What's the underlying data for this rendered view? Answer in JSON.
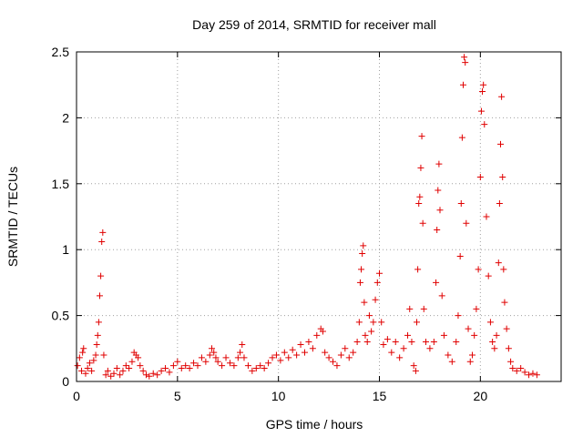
{
  "chart_data": {
    "type": "scatter",
    "title": "Day 259 of 2014, SRMTID for receiver mall",
    "xlabel": "GPS time / hours",
    "ylabel": "SRMTID / TECUs",
    "xlim": [
      0,
      24
    ],
    "ylim": [
      0,
      2.5
    ],
    "grid": true,
    "marker": "+",
    "series_color": "#e00000",
    "xticks": [
      {
        "value": 0,
        "label": "0"
      },
      {
        "value": 5,
        "label": "5"
      },
      {
        "value": 10,
        "label": "10"
      },
      {
        "value": 15,
        "label": "15"
      },
      {
        "value": 20,
        "label": "20"
      }
    ],
    "yticks": [
      {
        "value": 0,
        "label": "0"
      },
      {
        "value": 0.5,
        "label": "0.5"
      },
      {
        "value": 1,
        "label": "1"
      },
      {
        "value": 1.5,
        "label": "1.5"
      },
      {
        "value": 2,
        "label": "2"
      },
      {
        "value": 2.5,
        "label": "2.5"
      }
    ],
    "series": [
      {
        "name": "SRMTID",
        "points": [
          [
            0.05,
            0.12
          ],
          [
            0.15,
            0.18
          ],
          [
            0.25,
            0.08
          ],
          [
            0.3,
            0.22
          ],
          [
            0.35,
            0.25
          ],
          [
            0.45,
            0.06
          ],
          [
            0.55,
            0.1
          ],
          [
            0.65,
            0.14
          ],
          [
            0.75,
            0.08
          ],
          [
            0.85,
            0.16
          ],
          [
            0.95,
            0.2
          ],
          [
            1.0,
            0.28
          ],
          [
            1.05,
            0.35
          ],
          [
            1.1,
            0.45
          ],
          [
            1.15,
            0.65
          ],
          [
            1.2,
            0.8
          ],
          [
            1.25,
            1.06
          ],
          [
            1.3,
            1.13
          ],
          [
            1.35,
            0.2
          ],
          [
            1.45,
            0.05
          ],
          [
            1.55,
            0.08
          ],
          [
            1.7,
            0.04
          ],
          [
            1.85,
            0.06
          ],
          [
            2.0,
            0.1
          ],
          [
            2.15,
            0.05
          ],
          [
            2.3,
            0.08
          ],
          [
            2.45,
            0.12
          ],
          [
            2.6,
            0.1
          ],
          [
            2.75,
            0.15
          ],
          [
            2.85,
            0.22
          ],
          [
            2.95,
            0.2
          ],
          [
            3.05,
            0.18
          ],
          [
            3.15,
            0.12
          ],
          [
            3.3,
            0.08
          ],
          [
            3.45,
            0.05
          ],
          [
            3.6,
            0.04
          ],
          [
            3.8,
            0.06
          ],
          [
            4.0,
            0.05
          ],
          [
            4.2,
            0.08
          ],
          [
            4.4,
            0.1
          ],
          [
            4.6,
            0.07
          ],
          [
            4.8,
            0.12
          ],
          [
            5.0,
            0.15
          ],
          [
            5.2,
            0.1
          ],
          [
            5.4,
            0.12
          ],
          [
            5.6,
            0.1
          ],
          [
            5.8,
            0.14
          ],
          [
            6.0,
            0.12
          ],
          [
            6.2,
            0.18
          ],
          [
            6.4,
            0.15
          ],
          [
            6.6,
            0.2
          ],
          [
            6.7,
            0.25
          ],
          [
            6.8,
            0.22
          ],
          [
            6.9,
            0.18
          ],
          [
            7.0,
            0.15
          ],
          [
            7.2,
            0.12
          ],
          [
            7.4,
            0.18
          ],
          [
            7.6,
            0.14
          ],
          [
            7.8,
            0.12
          ],
          [
            8.0,
            0.18
          ],
          [
            8.1,
            0.22
          ],
          [
            8.2,
            0.28
          ],
          [
            8.3,
            0.18
          ],
          [
            8.5,
            0.12
          ],
          [
            8.7,
            0.08
          ],
          [
            8.9,
            0.1
          ],
          [
            9.1,
            0.12
          ],
          [
            9.3,
            0.1
          ],
          [
            9.5,
            0.14
          ],
          [
            9.7,
            0.18
          ],
          [
            9.9,
            0.2
          ],
          [
            10.1,
            0.16
          ],
          [
            10.3,
            0.22
          ],
          [
            10.5,
            0.18
          ],
          [
            10.7,
            0.24
          ],
          [
            10.9,
            0.2
          ],
          [
            11.1,
            0.28
          ],
          [
            11.3,
            0.22
          ],
          [
            11.5,
            0.3
          ],
          [
            11.7,
            0.25
          ],
          [
            11.9,
            0.35
          ],
          [
            12.1,
            0.4
          ],
          [
            12.2,
            0.38
          ],
          [
            12.3,
            0.22
          ],
          [
            12.5,
            0.18
          ],
          [
            12.7,
            0.15
          ],
          [
            12.9,
            0.12
          ],
          [
            13.1,
            0.2
          ],
          [
            13.3,
            0.25
          ],
          [
            13.5,
            0.18
          ],
          [
            13.7,
            0.22
          ],
          [
            13.9,
            0.3
          ],
          [
            14.0,
            0.45
          ],
          [
            14.05,
            0.75
          ],
          [
            14.1,
            0.85
          ],
          [
            14.15,
            0.97
          ],
          [
            14.2,
            1.03
          ],
          [
            14.25,
            0.6
          ],
          [
            14.3,
            0.35
          ],
          [
            14.4,
            0.3
          ],
          [
            14.5,
            0.5
          ],
          [
            14.6,
            0.38
          ],
          [
            14.7,
            0.45
          ],
          [
            14.8,
            0.62
          ],
          [
            14.9,
            0.75
          ],
          [
            15.0,
            0.82
          ],
          [
            15.1,
            0.45
          ],
          [
            15.2,
            0.28
          ],
          [
            15.4,
            0.32
          ],
          [
            15.6,
            0.22
          ],
          [
            15.8,
            0.3
          ],
          [
            16.0,
            0.18
          ],
          [
            16.2,
            0.25
          ],
          [
            16.4,
            0.35
          ],
          [
            16.5,
            0.55
          ],
          [
            16.6,
            0.3
          ],
          [
            16.7,
            0.12
          ],
          [
            16.8,
            0.08
          ],
          [
            16.85,
            0.45
          ],
          [
            16.9,
            0.85
          ],
          [
            16.95,
            1.35
          ],
          [
            17.0,
            1.4
          ],
          [
            17.05,
            1.62
          ],
          [
            17.1,
            1.86
          ],
          [
            17.15,
            1.2
          ],
          [
            17.2,
            0.55
          ],
          [
            17.3,
            0.3
          ],
          [
            17.5,
            0.25
          ],
          [
            17.7,
            0.3
          ],
          [
            17.8,
            0.75
          ],
          [
            17.85,
            1.15
          ],
          [
            17.9,
            1.45
          ],
          [
            17.95,
            1.65
          ],
          [
            18.0,
            1.3
          ],
          [
            18.1,
            0.65
          ],
          [
            18.2,
            0.35
          ],
          [
            18.4,
            0.2
          ],
          [
            18.6,
            0.15
          ],
          [
            18.8,
            0.3
          ],
          [
            18.9,
            0.5
          ],
          [
            19.0,
            0.95
          ],
          [
            19.05,
            1.35
          ],
          [
            19.1,
            1.85
          ],
          [
            19.15,
            2.25
          ],
          [
            19.2,
            2.46
          ],
          [
            19.25,
            2.42
          ],
          [
            19.3,
            1.2
          ],
          [
            19.4,
            0.4
          ],
          [
            19.5,
            0.15
          ],
          [
            19.6,
            0.2
          ],
          [
            19.7,
            0.35
          ],
          [
            19.8,
            0.55
          ],
          [
            19.9,
            0.85
          ],
          [
            20.0,
            1.55
          ],
          [
            20.05,
            2.05
          ],
          [
            20.1,
            2.2
          ],
          [
            20.15,
            2.25
          ],
          [
            20.2,
            1.95
          ],
          [
            20.3,
            1.25
          ],
          [
            20.4,
            0.8
          ],
          [
            20.5,
            0.45
          ],
          [
            20.6,
            0.3
          ],
          [
            20.7,
            0.25
          ],
          [
            20.8,
            0.35
          ],
          [
            20.9,
            0.9
          ],
          [
            20.95,
            1.35
          ],
          [
            21.0,
            1.8
          ],
          [
            21.05,
            2.16
          ],
          [
            21.1,
            1.55
          ],
          [
            21.15,
            0.85
          ],
          [
            21.2,
            0.6
          ],
          [
            21.3,
            0.4
          ],
          [
            21.4,
            0.25
          ],
          [
            21.5,
            0.15
          ],
          [
            21.6,
            0.1
          ],
          [
            21.8,
            0.08
          ],
          [
            22.0,
            0.1
          ],
          [
            22.2,
            0.07
          ],
          [
            22.4,
            0.05
          ],
          [
            22.6,
            0.06
          ],
          [
            22.8,
            0.05
          ]
        ]
      }
    ]
  }
}
